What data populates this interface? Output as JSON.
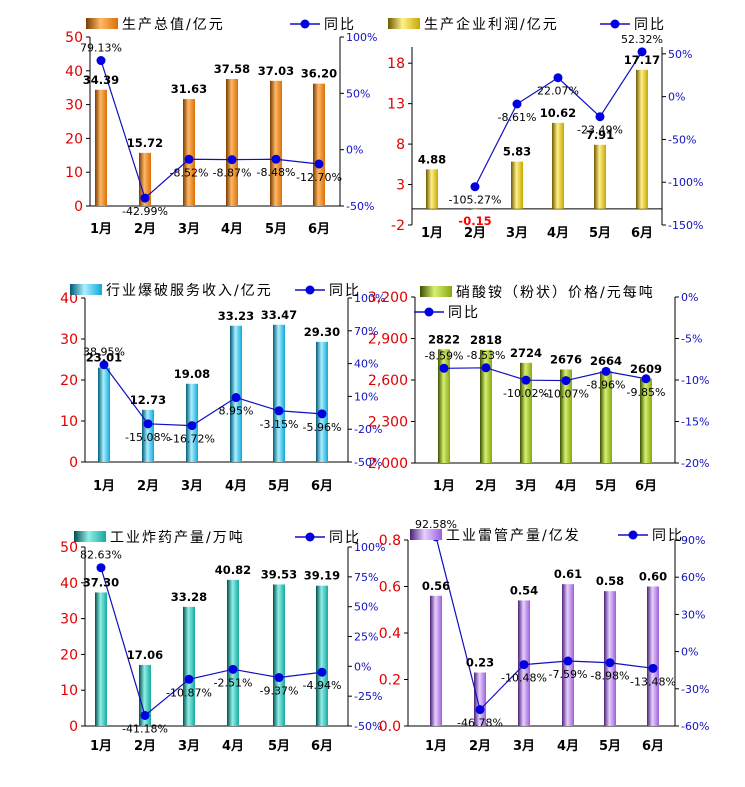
{
  "chart_data": [
    {
      "type": "bar",
      "categories": [
        "1月",
        "2月",
        "3月",
        "4月",
        "5月",
        "6月"
      ],
      "series": [
        {
          "name": "生产总值/亿元",
          "type": "bar",
          "axis": "left",
          "values": [
            34.39,
            15.72,
            31.63,
            37.58,
            37.03,
            36.2
          ],
          "labels": [
            "34.39",
            "15.72",
            "31.63",
            "37.58",
            "37.03",
            "36.20"
          ]
        },
        {
          "name": "同比",
          "type": "line",
          "axis": "right",
          "values": [
            79.13,
            -42.99,
            -8.52,
            -8.87,
            -8.48,
            -12.7
          ],
          "labels": [
            "79.13%",
            "-42.99%",
            "-8.52%",
            "-8.87%",
            "-8.48%",
            "-12.70%"
          ]
        }
      ],
      "left_axis": {
        "ticks": [
          0,
          10,
          20,
          30,
          40,
          50
        ],
        "labels": [
          "0",
          "10",
          "20",
          "30",
          "40",
          "50"
        ],
        "ylim": [
          0,
          50
        ]
      },
      "right_axis": {
        "ticks": [
          -50,
          0,
          50,
          100
        ],
        "labels": [
          "-50%",
          "0%",
          "50%",
          "100%"
        ],
        "ylim": [
          -50,
          100
        ]
      },
      "colors": {
        "bar": [
          "#ffb866",
          "#d8700a",
          "#7a3a00"
        ],
        "line": "#1010c0"
      }
    },
    {
      "type": "bar",
      "categories": [
        "1月",
        "2月",
        "3月",
        "4月",
        "5月",
        "6月"
      ],
      "series": [
        {
          "name": "生产企业利润/亿元",
          "type": "bar",
          "axis": "left",
          "values": [
            4.88,
            -0.15,
            5.83,
            10.62,
            7.91,
            17.17
          ],
          "labels": [
            "4.88",
            "-0.15",
            "5.83",
            "10.62",
            "7.91",
            "17.17"
          ]
        },
        {
          "name": "同比",
          "type": "line",
          "axis": "right",
          "values": [
            null,
            -105.27,
            -8.61,
            22.07,
            -23.49,
            52.32
          ],
          "labels": [
            "",
            "-105.27%",
            "-8.61%",
            "22.07%",
            "-23.49%",
            "52.32%"
          ]
        }
      ],
      "left_axis": {
        "ticks": [
          -2,
          3,
          8,
          13,
          18
        ],
        "labels": [
          "-2",
          "3",
          "8",
          "13",
          "18"
        ],
        "ylim": [
          -2,
          20
        ]
      },
      "right_axis": {
        "ticks": [
          -150,
          -100,
          -50,
          0,
          50
        ],
        "labels": [
          "-150%",
          "-100%",
          "-50%",
          "0%",
          "50%"
        ],
        "ylim": [
          -150,
          58
        ]
      },
      "colors": {
        "bar": [
          "#fff08a",
          "#c8a800",
          "#6e5a00"
        ],
        "line": "#1010c0",
        "negative_label": "#ff0000"
      }
    },
    {
      "type": "bar",
      "categories": [
        "1月",
        "2月",
        "3月",
        "4月",
        "5月",
        "6月"
      ],
      "series": [
        {
          "name": "行业爆破服务收入/亿元",
          "type": "bar",
          "axis": "left",
          "values": [
            23.01,
            12.73,
            19.08,
            33.23,
            33.47,
            29.3
          ],
          "labels": [
            "23.01",
            "12.73",
            "19.08",
            "33.23",
            "33.47",
            "29.30"
          ]
        },
        {
          "name": "同比",
          "type": "line",
          "axis": "right",
          "values": [
            38.95,
            -15.08,
            -16.72,
            8.95,
            -3.15,
            -5.96
          ],
          "labels": [
            "38.95%",
            "-15.08%",
            "-16.72%",
            "8.95%",
            "-3.15%",
            "-5.96%"
          ]
        }
      ],
      "left_axis": {
        "ticks": [
          0,
          10,
          20,
          30,
          40
        ],
        "labels": [
          "0",
          "10",
          "20",
          "30",
          "40"
        ],
        "ylim": [
          0,
          40
        ]
      },
      "right_axis": {
        "ticks": [
          -50,
          -20,
          10,
          40,
          70,
          100
        ],
        "labels": [
          "-50%",
          "-20%",
          "10%",
          "40%",
          "70%",
          "100%"
        ],
        "ylim": [
          -50,
          100
        ]
      },
      "colors": {
        "bar": [
          "#aaf0ff",
          "#10a8d8",
          "#005a78"
        ],
        "line": "#1010c0"
      }
    },
    {
      "type": "bar",
      "categories": [
        "1月",
        "2月",
        "3月",
        "4月",
        "5月",
        "6月"
      ],
      "series": [
        {
          "name": "硝酸铵（粉状）价格/元每吨",
          "type": "bar",
          "axis": "left",
          "values": [
            2822,
            2818,
            2724,
            2676,
            2664,
            2609
          ],
          "labels": [
            "2822",
            "2818",
            "2724",
            "2676",
            "2664",
            "2609"
          ]
        },
        {
          "name": "同比",
          "type": "line",
          "axis": "right",
          "values": [
            -8.59,
            -8.53,
            -10.02,
            -10.07,
            -8.96,
            -9.85
          ],
          "labels": [
            "-8.59%",
            "-8.53%",
            "-10.02%",
            "-10.07%",
            "-8.96%",
            "-9.85%"
          ]
        }
      ],
      "left_axis": {
        "ticks": [
          2000,
          2300,
          2600,
          2900,
          3200
        ],
        "labels": [
          "2,000",
          "2,300",
          "2,600",
          "2,900",
          "3,200"
        ],
        "ylim": [
          2000,
          3200
        ]
      },
      "right_axis": {
        "ticks": [
          -20,
          -15,
          -10,
          -5,
          0
        ],
        "labels": [
          "-20%",
          "-15%",
          "-10%",
          "-5%",
          "0%"
        ],
        "ylim": [
          -20,
          0
        ]
      },
      "colors": {
        "bar": [
          "#d8f070",
          "#86a814",
          "#3c5000"
        ],
        "line": "#1010c0"
      }
    },
    {
      "type": "bar",
      "categories": [
        "1月",
        "2月",
        "3月",
        "4月",
        "5月",
        "6月"
      ],
      "series": [
        {
          "name": "工业炸药产量/万吨",
          "type": "bar",
          "axis": "left",
          "values": [
            37.3,
            17.06,
            33.28,
            40.82,
            39.53,
            39.19
          ],
          "labels": [
            "37.30",
            "17.06",
            "33.28",
            "40.82",
            "39.53",
            "39.19"
          ]
        },
        {
          "name": "同比",
          "type": "line",
          "axis": "right",
          "values": [
            82.63,
            -41.18,
            -10.87,
            -2.51,
            -9.37,
            -4.94
          ],
          "labels": [
            "82.63%",
            "-41.18%",
            "-10.87%",
            "-2.51%",
            "-9.37%",
            "-4.94%"
          ]
        }
      ],
      "left_axis": {
        "ticks": [
          0,
          10,
          20,
          30,
          40,
          50
        ],
        "labels": [
          "0",
          "10",
          "20",
          "30",
          "40",
          "50"
        ],
        "ylim": [
          0,
          50
        ]
      },
      "right_axis": {
        "ticks": [
          -50,
          -25,
          0,
          25,
          50,
          75,
          100
        ],
        "labels": [
          "-50%",
          "-25%",
          "0%",
          "25%",
          "50%",
          "75%",
          "100%"
        ],
        "ylim": [
          -50,
          100
        ]
      },
      "colors": {
        "bar": [
          "#90f0e8",
          "#18a8a0",
          "#004e4a"
        ],
        "line": "#1010c0"
      }
    },
    {
      "type": "bar",
      "categories": [
        "1月",
        "2月",
        "3月",
        "4月",
        "5月",
        "6月"
      ],
      "series": [
        {
          "name": "工业雷管产量/亿发",
          "type": "bar",
          "axis": "left",
          "values": [
            0.56,
            0.23,
            0.54,
            0.61,
            0.58,
            0.6
          ],
          "labels": [
            "0.56",
            "0.23",
            "0.54",
            "0.61",
            "0.58",
            "0.60"
          ]
        },
        {
          "name": "同比",
          "type": "line",
          "axis": "right",
          "values": [
            92.58,
            -46.78,
            -10.48,
            -7.59,
            -8.98,
            -13.48
          ],
          "labels": [
            "92.58%",
            "-46.78%",
            "-10.48%",
            "-7.59%",
            "-8.98%",
            "-13.48%"
          ]
        }
      ],
      "left_axis": {
        "ticks": [
          0,
          0.2,
          0.4,
          0.6,
          0.8
        ],
        "labels": [
          "0.0",
          "0.2",
          "0.4",
          "0.6",
          "0.8"
        ],
        "ylim": [
          0,
          0.8
        ]
      },
      "right_axis": {
        "ticks": [
          -60,
          -30,
          0,
          30,
          60,
          90
        ],
        "labels": [
          "-60%",
          "-30%",
          "0%",
          "30%",
          "60%",
          "90%"
        ],
        "ylim": [
          -60,
          90
        ]
      },
      "colors": {
        "bar": [
          "#e8d0ff",
          "#9a60d8",
          "#4a2078"
        ],
        "line": "#1010c0"
      }
    }
  ]
}
